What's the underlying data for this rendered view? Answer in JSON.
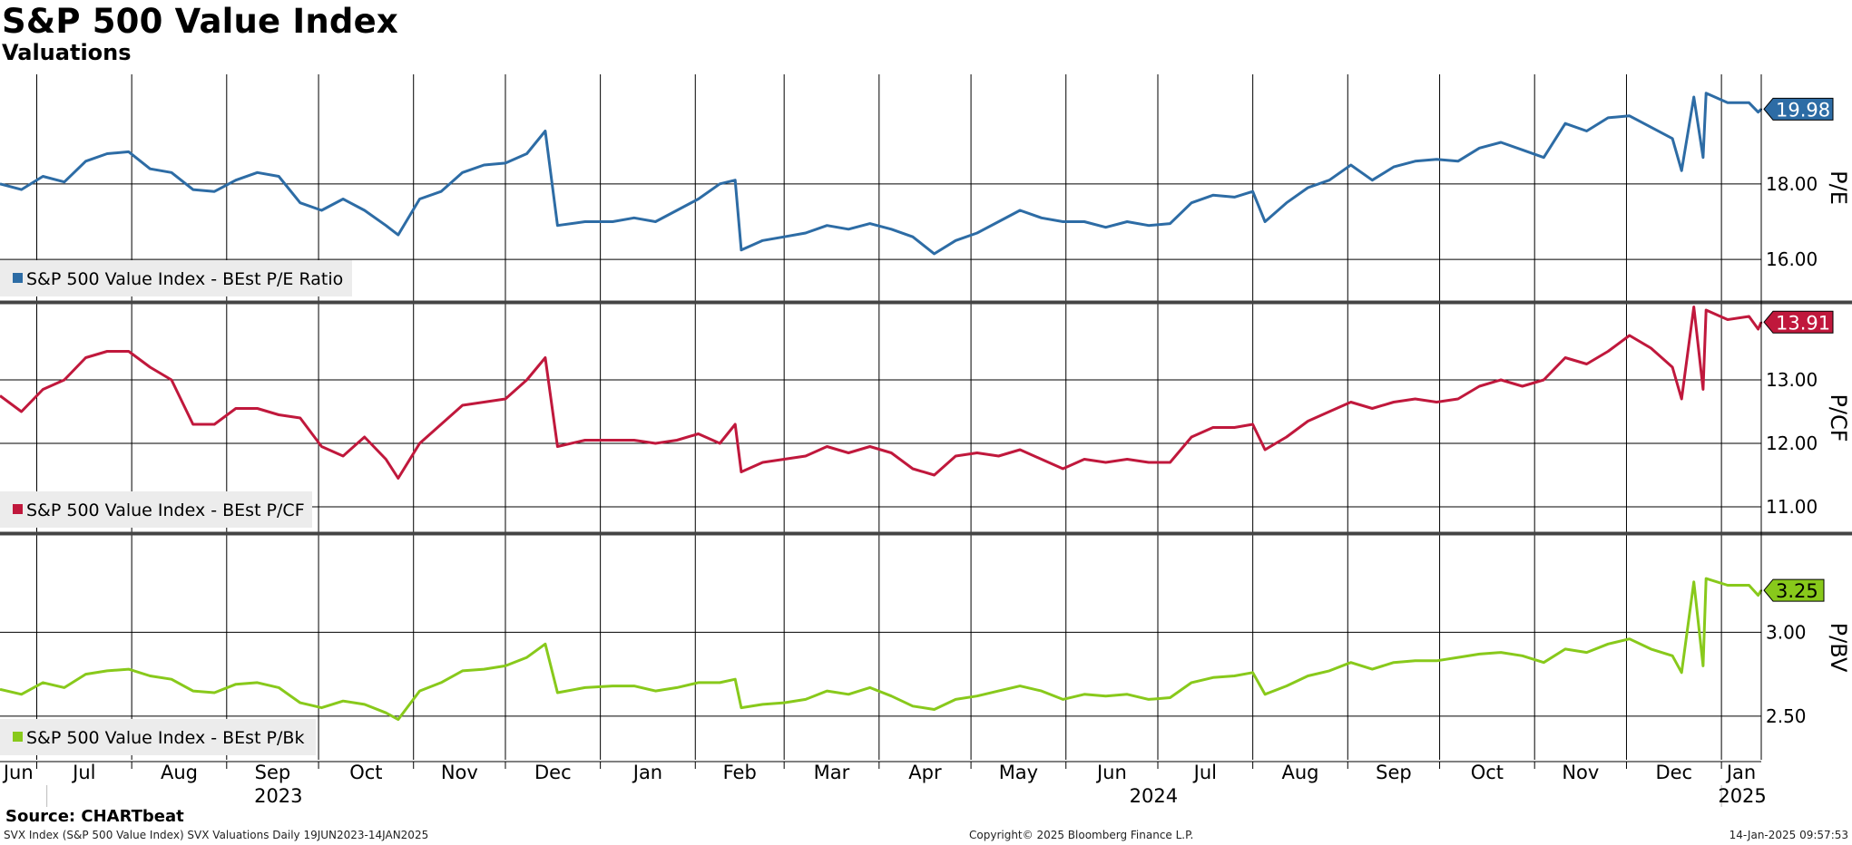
{
  "title": "S&P 500 Value Index",
  "subtitle": "Valuations",
  "source": "Source: CHARTbeat",
  "footer": {
    "left": "SVX Index (S&P 500 Value Index) SVX Valuations  Daily 19JUN2023-14JAN2025",
    "center": "Copyright© 2025 Bloomberg Finance L.P.",
    "right": "14-Jan-2025 09:57:53"
  },
  "chart_data": {
    "type": "line",
    "x_range": [
      "2023-06-19",
      "2025-01-14"
    ],
    "month_ticks": [
      "Jun",
      "Jul",
      "Aug",
      "Sep",
      "Oct",
      "Nov",
      "Dec",
      "Jan",
      "Feb",
      "Mar",
      "Apr",
      "May",
      "Jun",
      "Jul",
      "Aug",
      "Sep",
      "Oct",
      "Nov",
      "Dec",
      "Jan"
    ],
    "year_labels": [
      "2023",
      "2024",
      "2025"
    ],
    "panels": [
      {
        "ylabel": "P/E",
        "ylim": [
          14.9,
          20.9
        ],
        "ticks": [
          "16.00",
          "18.00"
        ],
        "color": "#2d6ca5",
        "legend": "S&P 500 Value Index - BEst P/E Ratio",
        "last_value": "19.98",
        "series": [
          [
            "2023-06-19",
            18.0
          ],
          [
            "2023-06-26",
            17.85
          ],
          [
            "2023-07-03",
            18.2
          ],
          [
            "2023-07-10",
            18.05
          ],
          [
            "2023-07-17",
            18.6
          ],
          [
            "2023-07-24",
            18.8
          ],
          [
            "2023-07-31",
            18.85
          ],
          [
            "2023-08-07",
            18.4
          ],
          [
            "2023-08-14",
            18.3
          ],
          [
            "2023-08-21",
            17.85
          ],
          [
            "2023-08-28",
            17.8
          ],
          [
            "2023-09-04",
            18.1
          ],
          [
            "2023-09-11",
            18.3
          ],
          [
            "2023-09-18",
            18.2
          ],
          [
            "2023-09-25",
            17.5
          ],
          [
            "2023-10-02",
            17.3
          ],
          [
            "2023-10-09",
            17.6
          ],
          [
            "2023-10-16",
            17.3
          ],
          [
            "2023-10-23",
            16.9
          ],
          [
            "2023-10-27",
            16.65
          ],
          [
            "2023-11-03",
            17.6
          ],
          [
            "2023-11-10",
            17.8
          ],
          [
            "2023-11-17",
            18.3
          ],
          [
            "2023-11-24",
            18.5
          ],
          [
            "2023-12-01",
            18.55
          ],
          [
            "2023-12-08",
            18.8
          ],
          [
            "2023-12-14",
            19.4
          ],
          [
            "2023-12-18",
            16.9
          ],
          [
            "2023-12-27",
            17.0
          ],
          [
            "2024-01-05",
            17.0
          ],
          [
            "2024-01-12",
            17.1
          ],
          [
            "2024-01-19",
            17.0
          ],
          [
            "2024-01-26",
            17.3
          ],
          [
            "2024-02-02",
            17.6
          ],
          [
            "2024-02-09",
            18.0
          ],
          [
            "2024-02-14",
            18.1
          ],
          [
            "2024-02-16",
            16.25
          ],
          [
            "2024-02-23",
            16.5
          ],
          [
            "2024-03-01",
            16.6
          ],
          [
            "2024-03-08",
            16.7
          ],
          [
            "2024-03-15",
            16.9
          ],
          [
            "2024-03-22",
            16.8
          ],
          [
            "2024-03-29",
            16.95
          ],
          [
            "2024-04-05",
            16.8
          ],
          [
            "2024-04-12",
            16.6
          ],
          [
            "2024-04-19",
            16.15
          ],
          [
            "2024-04-26",
            16.5
          ],
          [
            "2024-05-03",
            16.7
          ],
          [
            "2024-05-10",
            17.0
          ],
          [
            "2024-05-17",
            17.3
          ],
          [
            "2024-05-24",
            17.1
          ],
          [
            "2024-05-31",
            17.0
          ],
          [
            "2024-06-07",
            17.0
          ],
          [
            "2024-06-14",
            16.85
          ],
          [
            "2024-06-21",
            17.0
          ],
          [
            "2024-06-28",
            16.9
          ],
          [
            "2024-07-05",
            16.95
          ],
          [
            "2024-07-12",
            17.5
          ],
          [
            "2024-07-19",
            17.7
          ],
          [
            "2024-07-26",
            17.65
          ],
          [
            "2024-08-01",
            17.8
          ],
          [
            "2024-08-05",
            17.0
          ],
          [
            "2024-08-12",
            17.5
          ],
          [
            "2024-08-19",
            17.9
          ],
          [
            "2024-08-26",
            18.1
          ],
          [
            "2024-09-02",
            18.5
          ],
          [
            "2024-09-09",
            18.1
          ],
          [
            "2024-09-16",
            18.45
          ],
          [
            "2024-09-23",
            18.6
          ],
          [
            "2024-09-30",
            18.65
          ],
          [
            "2024-10-07",
            18.6
          ],
          [
            "2024-10-14",
            18.95
          ],
          [
            "2024-10-21",
            19.1
          ],
          [
            "2024-10-28",
            18.9
          ],
          [
            "2024-11-04",
            18.7
          ],
          [
            "2024-11-11",
            19.6
          ],
          [
            "2024-11-18",
            19.4
          ],
          [
            "2024-11-25",
            19.75
          ],
          [
            "2024-12-02",
            19.8
          ],
          [
            "2024-12-09",
            19.5
          ],
          [
            "2024-12-16",
            19.2
          ],
          [
            "2024-12-19",
            18.35
          ],
          [
            "2024-12-23",
            20.3
          ],
          [
            "2024-12-26",
            18.7
          ],
          [
            "2024-12-27",
            20.4
          ],
          [
            "2025-01-03",
            20.15
          ],
          [
            "2025-01-10",
            20.15
          ],
          [
            "2025-01-13",
            19.9
          ],
          [
            "2025-01-14",
            19.98
          ]
        ]
      },
      {
        "ylabel": "P/CF",
        "ylim": [
          10.6,
          14.2
        ],
        "ticks": [
          "11.00",
          "12.00",
          "13.00"
        ],
        "color": "#c0183c",
        "legend": "S&P 500 Value Index - BEst P/CF",
        "last_value": "13.91",
        "series": [
          [
            "2023-06-19",
            12.75
          ],
          [
            "2023-06-26",
            12.5
          ],
          [
            "2023-07-03",
            12.85
          ],
          [
            "2023-07-10",
            13.0
          ],
          [
            "2023-07-17",
            13.35
          ],
          [
            "2023-07-24",
            13.45
          ],
          [
            "2023-07-31",
            13.45
          ],
          [
            "2023-08-07",
            13.2
          ],
          [
            "2023-08-14",
            13.0
          ],
          [
            "2023-08-21",
            12.3
          ],
          [
            "2023-08-28",
            12.3
          ],
          [
            "2023-09-04",
            12.55
          ],
          [
            "2023-09-11",
            12.55
          ],
          [
            "2023-09-18",
            12.45
          ],
          [
            "2023-09-25",
            12.4
          ],
          [
            "2023-10-02",
            11.95
          ],
          [
            "2023-10-09",
            11.8
          ],
          [
            "2023-10-16",
            12.1
          ],
          [
            "2023-10-23",
            11.75
          ],
          [
            "2023-10-27",
            11.45
          ],
          [
            "2023-11-03",
            12.0
          ],
          [
            "2023-11-10",
            12.3
          ],
          [
            "2023-11-17",
            12.6
          ],
          [
            "2023-11-24",
            12.65
          ],
          [
            "2023-12-01",
            12.7
          ],
          [
            "2023-12-08",
            13.0
          ],
          [
            "2023-12-14",
            13.35
          ],
          [
            "2023-12-18",
            11.95
          ],
          [
            "2023-12-27",
            12.05
          ],
          [
            "2024-01-05",
            12.05
          ],
          [
            "2024-01-12",
            12.05
          ],
          [
            "2024-01-19",
            12.0
          ],
          [
            "2024-01-26",
            12.05
          ],
          [
            "2024-02-02",
            12.15
          ],
          [
            "2024-02-09",
            12.0
          ],
          [
            "2024-02-14",
            12.3
          ],
          [
            "2024-02-16",
            11.55
          ],
          [
            "2024-02-23",
            11.7
          ],
          [
            "2024-03-01",
            11.75
          ],
          [
            "2024-03-08",
            11.8
          ],
          [
            "2024-03-15",
            11.95
          ],
          [
            "2024-03-22",
            11.85
          ],
          [
            "2024-03-29",
            11.95
          ],
          [
            "2024-04-05",
            11.85
          ],
          [
            "2024-04-12",
            11.6
          ],
          [
            "2024-04-19",
            11.5
          ],
          [
            "2024-04-26",
            11.8
          ],
          [
            "2024-05-03",
            11.85
          ],
          [
            "2024-05-10",
            11.8
          ],
          [
            "2024-05-17",
            11.9
          ],
          [
            "2024-05-24",
            11.75
          ],
          [
            "2024-05-31",
            11.6
          ],
          [
            "2024-06-07",
            11.75
          ],
          [
            "2024-06-14",
            11.7
          ],
          [
            "2024-06-21",
            11.75
          ],
          [
            "2024-06-28",
            11.7
          ],
          [
            "2024-07-05",
            11.7
          ],
          [
            "2024-07-12",
            12.1
          ],
          [
            "2024-07-19",
            12.25
          ],
          [
            "2024-07-26",
            12.25
          ],
          [
            "2024-08-01",
            12.3
          ],
          [
            "2024-08-05",
            11.9
          ],
          [
            "2024-08-12",
            12.1
          ],
          [
            "2024-08-19",
            12.35
          ],
          [
            "2024-08-26",
            12.5
          ],
          [
            "2024-09-02",
            12.65
          ],
          [
            "2024-09-09",
            12.55
          ],
          [
            "2024-09-16",
            12.65
          ],
          [
            "2024-09-23",
            12.7
          ],
          [
            "2024-09-30",
            12.65
          ],
          [
            "2024-10-07",
            12.7
          ],
          [
            "2024-10-14",
            12.9
          ],
          [
            "2024-10-21",
            13.0
          ],
          [
            "2024-10-28",
            12.9
          ],
          [
            "2024-11-04",
            13.0
          ],
          [
            "2024-11-11",
            13.35
          ],
          [
            "2024-11-18",
            13.25
          ],
          [
            "2024-11-25",
            13.45
          ],
          [
            "2024-12-02",
            13.7
          ],
          [
            "2024-12-09",
            13.5
          ],
          [
            "2024-12-16",
            13.2
          ],
          [
            "2024-12-19",
            12.7
          ],
          [
            "2024-12-23",
            14.15
          ],
          [
            "2024-12-26",
            12.85
          ],
          [
            "2024-12-27",
            14.1
          ],
          [
            "2025-01-03",
            13.95
          ],
          [
            "2025-01-10",
            14.0
          ],
          [
            "2025-01-13",
            13.8
          ],
          [
            "2025-01-14",
            13.91
          ]
        ]
      },
      {
        "ylabel": "P/BV",
        "ylim": [
          2.24,
          3.58
        ],
        "ticks": [
          "2.50",
          "3.00"
        ],
        "color": "#88c91b",
        "legend": "S&P 500 Value Index - BEst P/Bk",
        "last_value": "3.25",
        "series": [
          [
            "2023-06-19",
            2.66
          ],
          [
            "2023-06-26",
            2.63
          ],
          [
            "2023-07-03",
            2.7
          ],
          [
            "2023-07-10",
            2.67
          ],
          [
            "2023-07-17",
            2.75
          ],
          [
            "2023-07-24",
            2.77
          ],
          [
            "2023-07-31",
            2.78
          ],
          [
            "2023-08-07",
            2.74
          ],
          [
            "2023-08-14",
            2.72
          ],
          [
            "2023-08-21",
            2.65
          ],
          [
            "2023-08-28",
            2.64
          ],
          [
            "2023-09-04",
            2.69
          ],
          [
            "2023-09-11",
            2.7
          ],
          [
            "2023-09-18",
            2.67
          ],
          [
            "2023-09-25",
            2.58
          ],
          [
            "2023-10-02",
            2.55
          ],
          [
            "2023-10-09",
            2.59
          ],
          [
            "2023-10-16",
            2.57
          ],
          [
            "2023-10-23",
            2.52
          ],
          [
            "2023-10-27",
            2.48
          ],
          [
            "2023-11-03",
            2.65
          ],
          [
            "2023-11-10",
            2.7
          ],
          [
            "2023-11-17",
            2.77
          ],
          [
            "2023-11-24",
            2.78
          ],
          [
            "2023-12-01",
            2.8
          ],
          [
            "2023-12-08",
            2.85
          ],
          [
            "2023-12-14",
            2.93
          ],
          [
            "2023-12-18",
            2.64
          ],
          [
            "2023-12-27",
            2.67
          ],
          [
            "2024-01-05",
            2.68
          ],
          [
            "2024-01-12",
            2.68
          ],
          [
            "2024-01-19",
            2.65
          ],
          [
            "2024-01-26",
            2.67
          ],
          [
            "2024-02-02",
            2.7
          ],
          [
            "2024-02-09",
            2.7
          ],
          [
            "2024-02-14",
            2.72
          ],
          [
            "2024-02-16",
            2.55
          ],
          [
            "2024-02-23",
            2.57
          ],
          [
            "2024-03-01",
            2.58
          ],
          [
            "2024-03-08",
            2.6
          ],
          [
            "2024-03-15",
            2.65
          ],
          [
            "2024-03-22",
            2.63
          ],
          [
            "2024-03-29",
            2.67
          ],
          [
            "2024-04-05",
            2.62
          ],
          [
            "2024-04-12",
            2.56
          ],
          [
            "2024-04-19",
            2.54
          ],
          [
            "2024-04-26",
            2.6
          ],
          [
            "2024-05-03",
            2.62
          ],
          [
            "2024-05-10",
            2.65
          ],
          [
            "2024-05-17",
            2.68
          ],
          [
            "2024-05-24",
            2.65
          ],
          [
            "2024-05-31",
            2.6
          ],
          [
            "2024-06-07",
            2.63
          ],
          [
            "2024-06-14",
            2.62
          ],
          [
            "2024-06-21",
            2.63
          ],
          [
            "2024-06-28",
            2.6
          ],
          [
            "2024-07-05",
            2.61
          ],
          [
            "2024-07-12",
            2.7
          ],
          [
            "2024-07-19",
            2.73
          ],
          [
            "2024-07-26",
            2.74
          ],
          [
            "2024-08-01",
            2.76
          ],
          [
            "2024-08-05",
            2.63
          ],
          [
            "2024-08-12",
            2.68
          ],
          [
            "2024-08-19",
            2.74
          ],
          [
            "2024-08-26",
            2.77
          ],
          [
            "2024-09-02",
            2.82
          ],
          [
            "2024-09-09",
            2.78
          ],
          [
            "2024-09-16",
            2.82
          ],
          [
            "2024-09-23",
            2.83
          ],
          [
            "2024-09-30",
            2.83
          ],
          [
            "2024-10-07",
            2.85
          ],
          [
            "2024-10-14",
            2.87
          ],
          [
            "2024-10-21",
            2.88
          ],
          [
            "2024-10-28",
            2.86
          ],
          [
            "2024-11-04",
            2.82
          ],
          [
            "2024-11-11",
            2.9
          ],
          [
            "2024-11-18",
            2.88
          ],
          [
            "2024-11-25",
            2.93
          ],
          [
            "2024-12-02",
            2.96
          ],
          [
            "2024-12-09",
            2.9
          ],
          [
            "2024-12-16",
            2.86
          ],
          [
            "2024-12-19",
            2.76
          ],
          [
            "2024-12-23",
            3.3
          ],
          [
            "2024-12-26",
            2.8
          ],
          [
            "2024-12-27",
            3.32
          ],
          [
            "2025-01-03",
            3.28
          ],
          [
            "2025-01-10",
            3.28
          ],
          [
            "2025-01-13",
            3.22
          ],
          [
            "2025-01-14",
            3.25
          ]
        ]
      }
    ]
  }
}
